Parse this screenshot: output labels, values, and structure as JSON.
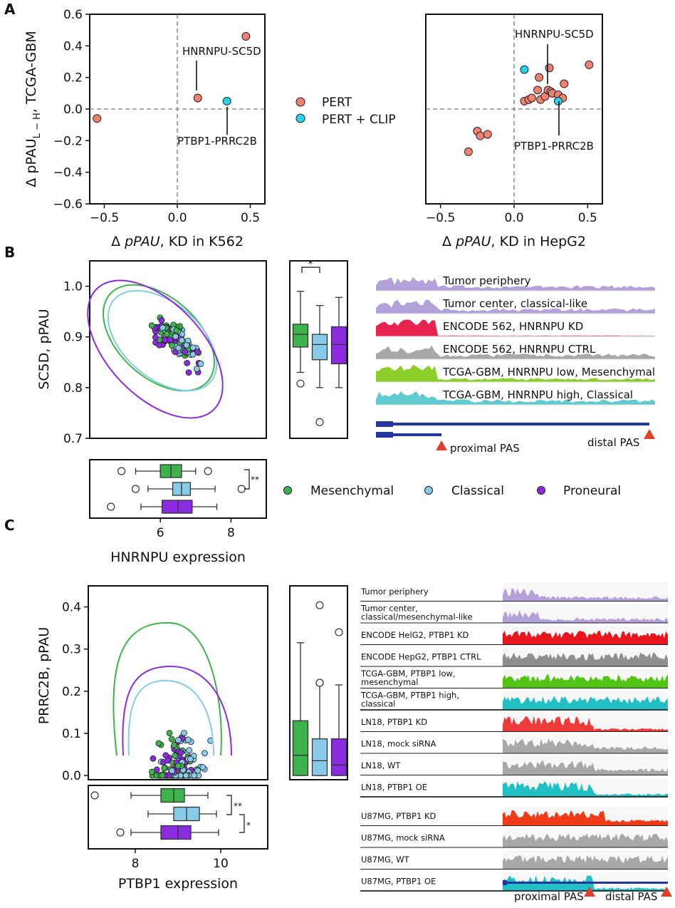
{
  "panel_labels": {
    "a": "A",
    "b": "B",
    "c": "C"
  },
  "colors": {
    "pert": "#f08070",
    "pert_clip": "#29d4e6",
    "mesenchymal": "#3cb44b",
    "classical": "#87cbe8",
    "proneural": "#8a2be2"
  },
  "chart_data": [
    {
      "id": "A-left",
      "type": "scatter",
      "xlabel_pre": "Δ ",
      "xlabel_italic": "pPAU",
      "xlabel_post": ", KD in K562",
      "ylabel": "Δ pPAU",
      "ylabel_sub": "L − H",
      "ylabel_post": ", TCGA-GBM",
      "xlim": [
        -0.6,
        0.6
      ],
      "ylim": [
        -0.6,
        0.6
      ],
      "xticks": [
        -0.5,
        0.0,
        0.5
      ],
      "xtick_labels": [
        "−0.5",
        "0.0",
        "0.5"
      ],
      "yticks": [
        0.6,
        0.4,
        0.2,
        0.0,
        -0.2,
        -0.4,
        -0.6
      ],
      "ytick_labels": [
        "0.6",
        "0.4",
        "0.2",
        "0.0",
        "−0.2",
        "−0.4",
        "−0.6"
      ],
      "points": [
        {
          "x": -0.55,
          "y": -0.06,
          "group": "PERT"
        },
        {
          "x": 0.14,
          "y": 0.07,
          "group": "PERT"
        },
        {
          "x": 0.47,
          "y": 0.46,
          "group": "PERT"
        },
        {
          "x": 0.34,
          "y": 0.05,
          "group": "PERT + CLIP"
        }
      ],
      "annotations": [
        "HNRNPU-SC5D",
        "PTBP1-PRRC2B"
      ]
    },
    {
      "id": "A-right",
      "type": "scatter",
      "xlabel_pre": "Δ ",
      "xlabel_italic": "pPAU",
      "xlabel_post": ", KD in HepG2",
      "xlim": [
        -0.6,
        0.6
      ],
      "ylim": [
        -0.6,
        0.6
      ],
      "xticks": [
        -0.5,
        0.0,
        0.5
      ],
      "xtick_labels": [
        "−0.5",
        "0.0",
        "0.5"
      ],
      "points": [
        {
          "x": -0.31,
          "y": -0.27,
          "group": "PERT"
        },
        {
          "x": -0.25,
          "y": -0.14,
          "group": "PERT"
        },
        {
          "x": -0.23,
          "y": -0.17,
          "group": "PERT"
        },
        {
          "x": -0.18,
          "y": -0.16,
          "group": "PERT"
        },
        {
          "x": 0.07,
          "y": 0.05,
          "group": "PERT"
        },
        {
          "x": 0.1,
          "y": 0.06,
          "group": "PERT"
        },
        {
          "x": 0.12,
          "y": 0.07,
          "group": "PERT"
        },
        {
          "x": 0.16,
          "y": 0.12,
          "group": "PERT"
        },
        {
          "x": 0.17,
          "y": 0.2,
          "group": "PERT"
        },
        {
          "x": 0.18,
          "y": 0.06,
          "group": "PERT"
        },
        {
          "x": 0.21,
          "y": 0.08,
          "group": "PERT"
        },
        {
          "x": 0.23,
          "y": 0.12,
          "group": "PERT"
        },
        {
          "x": 0.24,
          "y": 0.26,
          "group": "PERT"
        },
        {
          "x": 0.25,
          "y": 0.11,
          "group": "PERT"
        },
        {
          "x": 0.26,
          "y": 0.1,
          "group": "PERT"
        },
        {
          "x": 0.3,
          "y": 0.09,
          "group": "PERT"
        },
        {
          "x": 0.33,
          "y": 0.07,
          "group": "PERT"
        },
        {
          "x": 0.34,
          "y": 0.16,
          "group": "PERT"
        },
        {
          "x": 0.51,
          "y": 0.28,
          "group": "PERT"
        },
        {
          "x": 0.07,
          "y": 0.25,
          "group": "PERT + CLIP"
        },
        {
          "x": 0.3,
          "y": 0.05,
          "group": "PERT + CLIP"
        }
      ],
      "annotations": [
        "HNRNPU-SC5D",
        "PTBP1-PRRC2B"
      ]
    },
    {
      "id": "B-scatter",
      "type": "scatter",
      "ylabel": "SC5D, pPAU",
      "xlim": [
        4,
        9
      ],
      "ylim": [
        0.7,
        1.05
      ],
      "yticks": [
        1.0,
        0.9,
        0.8,
        0.7
      ],
      "ytick_labels": [
        "1.0",
        "0.9",
        "0.8",
        "0.7"
      ],
      "n_points_per_group": 45
    },
    {
      "id": "B-box-pPAU",
      "type": "box",
      "ylim": [
        0.7,
        1.05
      ],
      "groups": [
        {
          "name": "Mesenchymal",
          "whisker_low": 0.83,
          "q1": 0.88,
          "median": 0.905,
          "q3": 0.925,
          "whisker_high": 0.99,
          "outliers": [
            0.808
          ]
        },
        {
          "name": "Classical",
          "whisker_low": 0.8,
          "q1": 0.855,
          "median": 0.885,
          "q3": 0.905,
          "whisker_high": 0.962,
          "outliers": [
            0.732
          ]
        },
        {
          "name": "Proneural",
          "whisker_low": 0.8,
          "q1": 0.847,
          "median": 0.885,
          "q3": 0.92,
          "whisker_high": 0.978,
          "outliers": []
        }
      ],
      "significance": "*"
    },
    {
      "id": "B-box-expr",
      "type": "box",
      "xlabel": "HNRNPU expression",
      "xlim": [
        4,
        9
      ],
      "xticks": [
        6,
        8
      ],
      "xtick_labels": [
        "6",
        "8"
      ],
      "groups": [
        {
          "name": "Mesenchymal",
          "whisker_low": 5.3,
          "q1": 6.0,
          "median": 6.3,
          "q3": 6.6,
          "whisker_high": 7.0,
          "outliers": [
            4.9,
            7.35
          ]
        },
        {
          "name": "Classical",
          "whisker_low": 5.65,
          "q1": 6.35,
          "median": 6.6,
          "q3": 6.85,
          "whisker_high": 7.55,
          "outliers": [
            5.3,
            8.3
          ]
        },
        {
          "name": "Proneural",
          "whisker_low": 5.45,
          "q1": 6.05,
          "median": 6.5,
          "q3": 6.9,
          "whisker_high": 7.6,
          "outliers": [
            4.6
          ]
        }
      ],
      "significance": "**"
    },
    {
      "id": "C-scatter",
      "type": "scatter",
      "ylabel": "PRRC2B, pPAU",
      "xlim": [
        6.9,
        11.1
      ],
      "ylim": [
        -0.01,
        0.45
      ],
      "yticks": [
        0.0,
        0.1,
        0.2,
        0.3,
        0.4
      ],
      "ytick_labels": [
        "0.0",
        "0.1",
        "0.2",
        "0.3",
        "0.4"
      ],
      "n_points_per_group": 45
    },
    {
      "id": "C-box-pPAU",
      "type": "box",
      "ylim": [
        -0.01,
        0.45
      ],
      "groups": [
        {
          "name": "Mesenchymal",
          "whisker_low": 0.0,
          "q1": 0.0,
          "median": 0.048,
          "q3": 0.13,
          "whisker_high": 0.315,
          "outliers": []
        },
        {
          "name": "Classical",
          "whisker_low": 0.0,
          "q1": 0.0,
          "median": 0.035,
          "q3": 0.087,
          "whisker_high": 0.215,
          "outliers": [
            0.404,
            0.22
          ]
        },
        {
          "name": "Proneural",
          "whisker_low": 0.0,
          "q1": 0.0,
          "median": 0.025,
          "q3": 0.087,
          "whisker_high": 0.215,
          "outliers": [
            0.34
          ]
        }
      ]
    },
    {
      "id": "C-box-expr",
      "type": "box",
      "xlabel": "PTBP1 expression",
      "xlim": [
        6.9,
        11.1
      ],
      "xticks": [
        8,
        10
      ],
      "xtick_labels": [
        "8",
        "10"
      ],
      "groups": [
        {
          "name": "Mesenchymal",
          "whisker_low": 7.9,
          "q1": 8.6,
          "median": 8.9,
          "q3": 9.15,
          "whisker_high": 9.7,
          "outliers": [
            7.05
          ]
        },
        {
          "name": "Classical",
          "whisker_low": 8.3,
          "q1": 8.9,
          "median": 9.2,
          "q3": 9.5,
          "whisker_high": 9.9,
          "outliers": []
        },
        {
          "name": "Proneural",
          "whisker_low": 7.9,
          "q1": 8.6,
          "median": 9.0,
          "q3": 9.3,
          "whisker_high": 9.95,
          "outliers": [
            7.65
          ]
        }
      ],
      "significance": [
        "**",
        "*"
      ]
    }
  ],
  "legend_A": [
    {
      "label": "PERT",
      "color": "#f08070"
    },
    {
      "label": "PERT + CLIP",
      "color": "#29d4e6"
    }
  ],
  "legend_B": [
    {
      "label": "Mesenchymal",
      "color": "#3cb44b"
    },
    {
      "label": "Classical",
      "color": "#87cbe8"
    },
    {
      "label": "Proneural",
      "color": "#8a2be2"
    }
  ],
  "tracks_B": [
    {
      "label": "Tumor periphery",
      "color": "#b3a2d9"
    },
    {
      "label": "Tumor center, classical-like",
      "color": "#b3a2d9"
    },
    {
      "label": "ENCODE 562, HNRNPU KD",
      "color": "#e8234e"
    },
    {
      "label": "ENCODE 562, HNRNPU CTRL",
      "color": "#a8a8a8"
    },
    {
      "label": "TCGA-GBM, HNRNPU low, Mesenchymal",
      "color": "#8ccf2a"
    },
    {
      "label": "TCGA-GBM, HNRNPU high, Classical",
      "color": "#5fcbcf"
    }
  ],
  "pas_B": {
    "proximal": "proximal PAS",
    "distal": "distal PAS"
  },
  "tracks_C": [
    {
      "label1": "Tumor periphery",
      "label2": "",
      "color": "#b3a2d9"
    },
    {
      "label1": "Tumor center,",
      "label2": "classical/mesenchymal-like",
      "color": "#b3a2d9"
    },
    {
      "label1": "ENCODE HelG2, PTBP1 KD",
      "label2": "",
      "color": "#e8161c"
    },
    {
      "label1": "ENCODE HepG2, PTBP1 CTRL",
      "label2": "",
      "color": "#8f8f8f"
    },
    {
      "label1": "TCGA-GBM, PTBP1 low,",
      "label2": "mesenchymal",
      "color": "#52c414"
    },
    {
      "label1": "TCGA-GBM, PTBP1 high,",
      "label2": "classical",
      "color": "#21c0c4"
    },
    {
      "label1": "LN18, PTBP1 KD",
      "label2": "",
      "color": "#ef3a3a"
    },
    {
      "label1": "LN18, mock siRNA",
      "label2": "",
      "color": "#a8a8a8"
    },
    {
      "label1": "LN18, WT",
      "label2": "",
      "color": "#a8a8a8"
    },
    {
      "label1": "LN18, PTBP1 OE",
      "label2": "",
      "color": "#21c0c4"
    },
    {
      "label1": "U87MG, PTBP1 KD",
      "label2": "",
      "color": "#ef3b1a"
    },
    {
      "label1": "U87MG, mock siRNA",
      "label2": "",
      "color": "#a8a8a8"
    },
    {
      "label1": "U87MG, WT",
      "label2": "",
      "color": "#a8a8a8"
    },
    {
      "label1": "U87MG, PTBP1 OE",
      "label2": "",
      "color": "#21c0c4"
    }
  ],
  "pas_C": {
    "proximal": "proximal PAS",
    "distal": "distal PAS"
  }
}
